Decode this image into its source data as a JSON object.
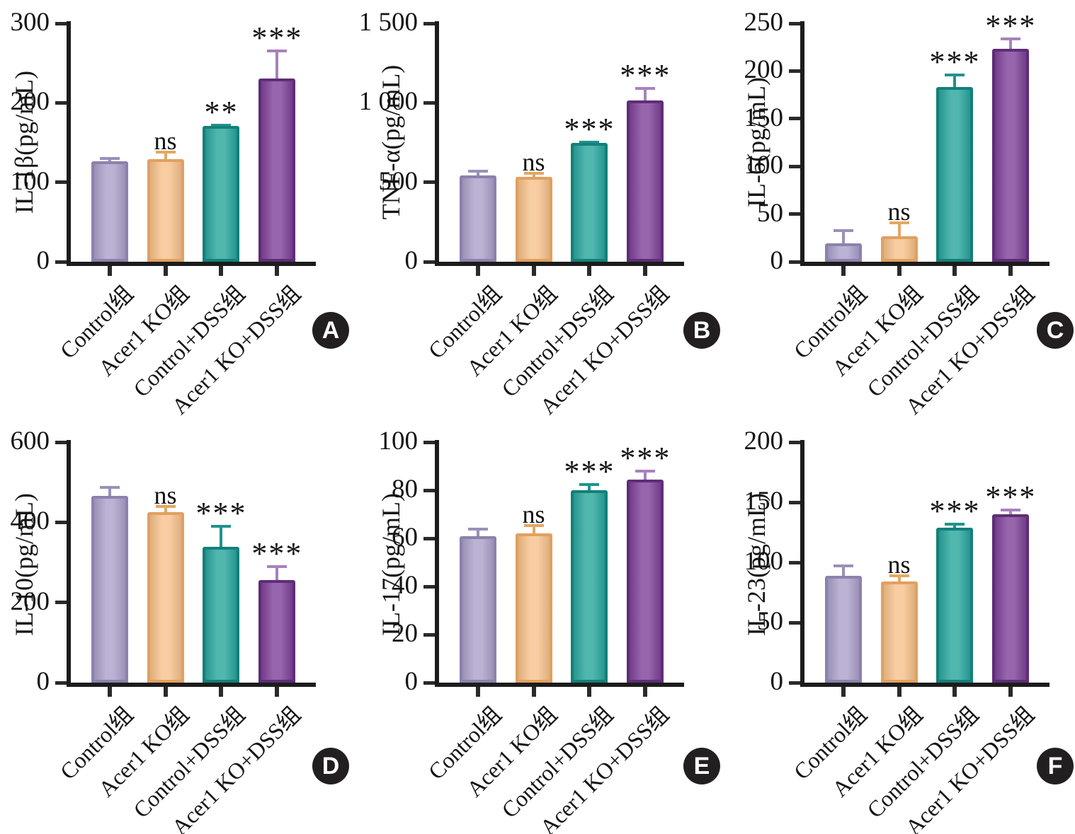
{
  "figure_title": "",
  "groups": {
    "names": [
      "Control组",
      "Acer1 KO组",
      "Control+DSS组",
      "Acer1 KO+DSS组"
    ],
    "fill_colors": [
      "#aca1cb",
      "#f7c28c",
      "#2aa79e",
      "#7f4399"
    ],
    "border_colors": [
      "#8d81ad",
      "#e1a05f",
      "#157f7a",
      "#5f2d78"
    ],
    "error_colors": [
      "#9a90ba",
      "#e3a863",
      "#1e948d",
      "#a782be"
    ]
  },
  "style_colors": {
    "axis": "#1c1c1c",
    "badge_background": "#231f20",
    "badge_text": "#ffffff"
  },
  "chart_data": [
    {
      "type": "bar",
      "panel_label": "A",
      "ylabel": "IL-1β(pg/mL)",
      "xlabel": "",
      "categories": [
        "Control组",
        "Acer1 KO组",
        "Control+DSS组",
        "Acer1 KO+DSS组"
      ],
      "values": [
        126,
        129,
        171,
        231
      ],
      "errors": [
        6,
        11,
        3,
        36
      ],
      "significance": [
        "",
        "ns",
        "**",
        "***"
      ],
      "ylim": [
        0,
        300
      ],
      "ytick_values": [
        0,
        100,
        200,
        300
      ],
      "ytick_labels": [
        "0",
        "100",
        "200",
        "300"
      ],
      "grid": false,
      "legend": "none"
    },
    {
      "type": "bar",
      "panel_label": "B",
      "ylabel": "TNF-α(pg/mL)",
      "xlabel": "",
      "categories": [
        "Control组",
        "Acer1 KO组",
        "Control+DSS组",
        "Acer1 KO+DSS组"
      ],
      "values": [
        543,
        536,
        748,
        1015
      ],
      "errors": [
        34,
        30,
        14,
        84
      ],
      "significance": [
        "",
        "ns",
        "***",
        "***"
      ],
      "ylim": [
        0,
        1500
      ],
      "ytick_values": [
        0,
        500,
        1000,
        1500
      ],
      "ytick_labels": [
        "0",
        "500",
        "1 000",
        "1 500"
      ],
      "grid": false,
      "legend": "none"
    },
    {
      "type": "bar",
      "panel_label": "C",
      "ylabel": "IL-6(pg/mL)",
      "xlabel": "",
      "categories": [
        "Control组",
        "Acer1 KO组",
        "Control+DSS组",
        "Acer1 KO+DSS组"
      ],
      "values": [
        19,
        27,
        183,
        223
      ],
      "errors": [
        15,
        15,
        14,
        12
      ],
      "significance": [
        "",
        "ns",
        "***",
        "***"
      ],
      "ylim": [
        0,
        250
      ],
      "ytick_values": [
        0,
        50,
        100,
        150,
        200,
        250
      ],
      "ytick_labels": [
        "0",
        "50",
        "100",
        "150",
        "200",
        "250"
      ],
      "grid": false,
      "legend": "none"
    },
    {
      "type": "bar",
      "panel_label": "D",
      "ylabel": "IL-10(pg/mL)",
      "xlabel": "",
      "categories": [
        "Control组",
        "Acer1 KO组",
        "Control+DSS组",
        "Acer1 KO+DSS组"
      ],
      "values": [
        466,
        425,
        339,
        256
      ],
      "errors": [
        24,
        18,
        55,
        37
      ],
      "significance": [
        "",
        "ns",
        "***",
        "***"
      ],
      "ylim": [
        0,
        600
      ],
      "ytick_values": [
        0,
        200,
        400,
        600
      ],
      "ytick_labels": [
        "0",
        "200",
        "400",
        "600"
      ],
      "grid": false,
      "legend": "none"
    },
    {
      "type": "bar",
      "panel_label": "E",
      "ylabel": "IL-17(pg/mL)",
      "xlabel": "",
      "categories": [
        "Control组",
        "Acer1 KO组",
        "Control+DSS组",
        "Acer1 KO+DSS组"
      ],
      "values": [
        61,
        62,
        80,
        84.5
      ],
      "errors": [
        3.5,
        4,
        3,
        4
      ],
      "significance": [
        "",
        "ns",
        "***",
        "***"
      ],
      "ylim": [
        0,
        100
      ],
      "ytick_values": [
        0,
        20,
        40,
        60,
        80,
        100
      ],
      "ytick_labels": [
        "0",
        "20",
        "40",
        "60",
        "80",
        "100"
      ],
      "grid": false,
      "legend": "none"
    },
    {
      "type": "bar",
      "panel_label": "F",
      "ylabel": "IL-23(pg/mL)",
      "xlabel": "",
      "categories": [
        "Control组",
        "Acer1 KO组",
        "Control+DSS组",
        "Acer1 KO+DSS组"
      ],
      "values": [
        89,
        84,
        129,
        140
      ],
      "errors": [
        9,
        6,
        4,
        5
      ],
      "significance": [
        "",
        "ns",
        "***",
        "***"
      ],
      "ylim": [
        0,
        200
      ],
      "ytick_values": [
        0,
        50,
        100,
        150,
        200
      ],
      "ytick_labels": [
        "0",
        "50",
        "100",
        "150",
        "200"
      ],
      "grid": false,
      "legend": "none"
    }
  ]
}
